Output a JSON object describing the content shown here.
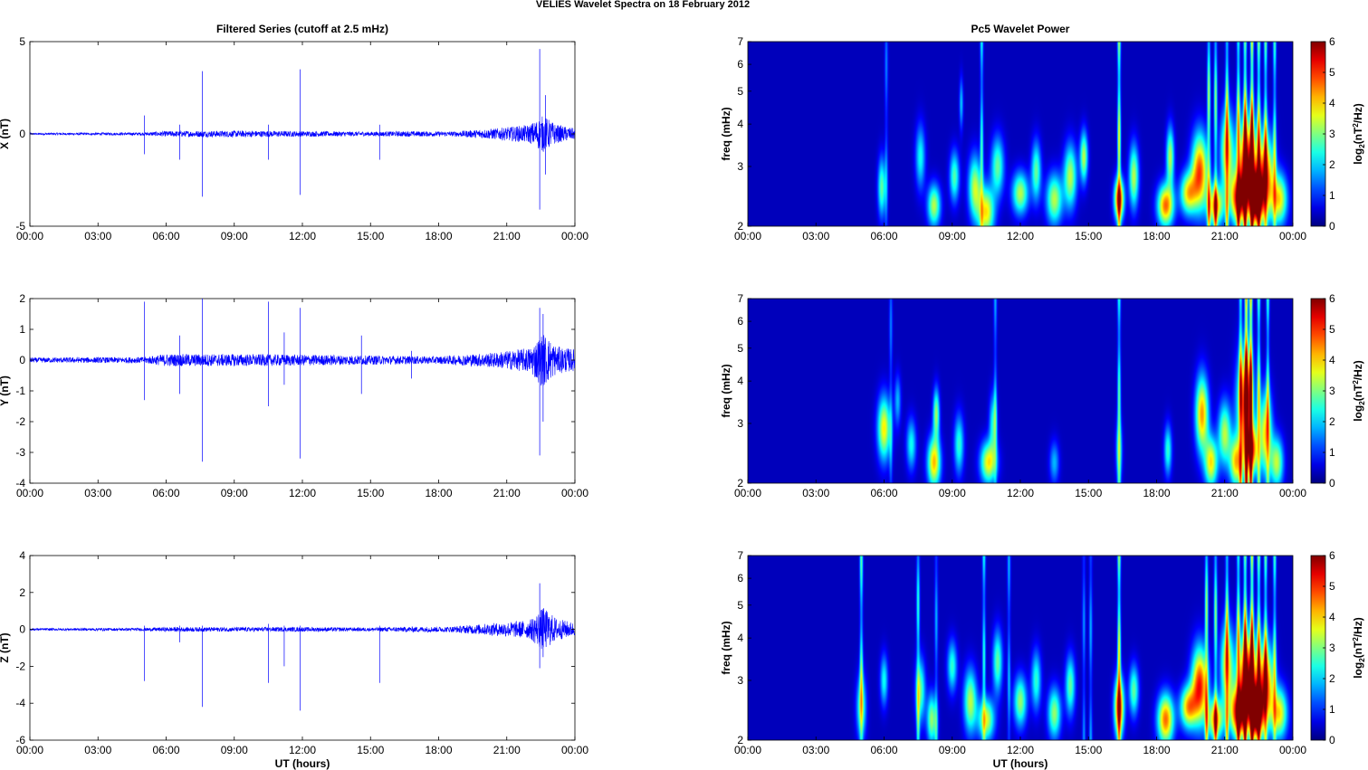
{
  "figure": {
    "suptitle": "VELIES Wavelet Spectra on 18 February  2012",
    "left_title": "Filtered Series (cutoff at 2.5 mHz)",
    "right_title": "Pc5 Wavelet Power"
  },
  "chart_data": [
    {
      "type": "line",
      "title": "Filtered Series (cutoff at 2.5 mHz)",
      "ylabel": "X (nT)",
      "xlabel": "",
      "xlim": [
        0,
        24
      ],
      "ylim": [
        -5,
        5
      ],
      "xticks": [
        "00:00",
        "03:00",
        "06:00",
        "09:00",
        "12:00",
        "15:00",
        "18:00",
        "21:00",
        "00:00"
      ],
      "yticks": [
        -5,
        0,
        5
      ],
      "series": [
        {
          "color": "#0000ff",
          "noise_profile": [
            [
              0,
              0.05
            ],
            [
              5,
              0.08
            ],
            [
              6,
              0.15
            ],
            [
              9,
              0.18
            ],
            [
              12,
              0.15
            ],
            [
              15,
              0.12
            ],
            [
              16.8,
              0.15
            ],
            [
              18.5,
              0.12
            ],
            [
              20.5,
              0.3
            ],
            [
              22,
              0.5
            ],
            [
              22.6,
              1.0
            ],
            [
              23.2,
              0.5
            ],
            [
              24,
              0.3
            ]
          ],
          "spikes": [
            [
              5.05,
              1.0,
              -1.1
            ],
            [
              6.6,
              0.5,
              -1.4
            ],
            [
              7.6,
              3.4,
              -3.4
            ],
            [
              10.5,
              0.5,
              -1.4
            ],
            [
              11.9,
              3.5,
              -3.3
            ],
            [
              15.4,
              0.5,
              -1.4
            ],
            [
              22.45,
              4.6,
              -4.1
            ],
            [
              22.7,
              2.1,
              -2.2
            ]
          ]
        }
      ]
    },
    {
      "type": "line",
      "ylabel": "Y (nT)",
      "xlabel": "",
      "xlim": [
        0,
        24
      ],
      "ylim": [
        -4,
        2
      ],
      "xticks": [
        "00:00",
        "03:00",
        "06:00",
        "09:00",
        "12:00",
        "15:00",
        "18:00",
        "21:00",
        "00:00"
      ],
      "yticks": [
        -4,
        -3,
        -2,
        -1,
        0,
        1,
        2
      ],
      "series": [
        {
          "color": "#0000ff",
          "noise_profile": [
            [
              0,
              0.08
            ],
            [
              5,
              0.1
            ],
            [
              6,
              0.2
            ],
            [
              9,
              0.2
            ],
            [
              12,
              0.18
            ],
            [
              15,
              0.15
            ],
            [
              18,
              0.12
            ],
            [
              20.5,
              0.25
            ],
            [
              22,
              0.4
            ],
            [
              22.6,
              0.9
            ],
            [
              23.2,
              0.45
            ],
            [
              24,
              0.35
            ]
          ],
          "spikes": [
            [
              5.05,
              1.9,
              -1.3
            ],
            [
              6.6,
              0.8,
              -1.1
            ],
            [
              7.6,
              2.0,
              -3.3
            ],
            [
              10.5,
              1.9,
              -1.5
            ],
            [
              11.2,
              0.9,
              -0.8
            ],
            [
              11.9,
              1.7,
              -3.2
            ],
            [
              14.6,
              0.8,
              -1.1
            ],
            [
              16.8,
              0.3,
              -0.6
            ],
            [
              22.45,
              1.7,
              -3.1
            ],
            [
              22.6,
              1.5,
              -2.0
            ]
          ]
        }
      ]
    },
    {
      "type": "line",
      "ylabel": "Z (nT)",
      "xlabel": "UT (hours)",
      "xlim": [
        0,
        24
      ],
      "ylim": [
        -6,
        4
      ],
      "xticks": [
        "00:00",
        "03:00",
        "06:00",
        "09:00",
        "12:00",
        "15:00",
        "18:00",
        "21:00",
        "00:00"
      ],
      "yticks": [
        -6,
        -4,
        -2,
        0,
        2,
        4
      ],
      "series": [
        {
          "color": "#0000ff",
          "noise_profile": [
            [
              0,
              0.06
            ],
            [
              5,
              0.08
            ],
            [
              6,
              0.12
            ],
            [
              9,
              0.12
            ],
            [
              12,
              0.12
            ],
            [
              15,
              0.1
            ],
            [
              17,
              0.15
            ],
            [
              18.5,
              0.15
            ],
            [
              20.5,
              0.35
            ],
            [
              22,
              0.5
            ],
            [
              22.6,
              1.2
            ],
            [
              23.2,
              0.6
            ],
            [
              24,
              0.35
            ]
          ],
          "spikes": [
            [
              5.05,
              0.2,
              -2.8
            ],
            [
              6.6,
              0.2,
              -0.7
            ],
            [
              7.6,
              0.2,
              -4.2
            ],
            [
              10.5,
              0.3,
              -2.9
            ],
            [
              11.2,
              0.2,
              -2.0
            ],
            [
              11.9,
              0.2,
              -4.4
            ],
            [
              15.4,
              0.2,
              -2.9
            ],
            [
              22.45,
              2.5,
              -2.1
            ],
            [
              22.6,
              1.1,
              -1.5
            ]
          ]
        }
      ]
    },
    {
      "type": "heatmap",
      "title": "Pc5 Wavelet Power",
      "ylabel": "freq (mHz)",
      "xlabel": "",
      "xlim": [
        0,
        24
      ],
      "ylim": [
        2,
        7
      ],
      "yscale": "log",
      "xticks": [
        "00:00",
        "03:00",
        "06:00",
        "09:00",
        "12:00",
        "15:00",
        "18:00",
        "21:00",
        "00:00"
      ],
      "yticks": [
        2,
        3,
        4,
        5,
        6,
        7
      ],
      "colorbar": {
        "label": "log2(nT^2/Hz)",
        "ticks": [
          0,
          1,
          2,
          3,
          4,
          5,
          6
        ],
        "range": [
          0,
          6
        ],
        "colormap": "jet"
      },
      "blobs": [
        [
          5.9,
          2.6,
          0.12,
          0.14,
          2.5
        ],
        [
          7.6,
          3.2,
          0.15,
          0.15,
          2.0
        ],
        [
          8.2,
          2.3,
          0.2,
          0.1,
          3.0
        ],
        [
          9.1,
          2.8,
          0.15,
          0.12,
          2.4
        ],
        [
          9.4,
          4.6,
          0.06,
          0.12,
          1.6
        ],
        [
          10.0,
          2.6,
          0.2,
          0.15,
          3.0
        ],
        [
          10.5,
          2.2,
          0.25,
          0.12,
          3.5
        ],
        [
          11.0,
          3.0,
          0.2,
          0.14,
          2.5
        ],
        [
          12.0,
          2.5,
          0.25,
          0.1,
          3.0
        ],
        [
          12.7,
          2.9,
          0.15,
          0.14,
          2.5
        ],
        [
          13.5,
          2.4,
          0.25,
          0.12,
          3.0
        ],
        [
          14.2,
          2.8,
          0.2,
          0.15,
          3.0
        ],
        [
          14.8,
          3.2,
          0.12,
          0.12,
          3.0
        ],
        [
          16.35,
          2.4,
          0.15,
          0.1,
          4.8
        ],
        [
          17.0,
          2.8,
          0.15,
          0.15,
          3.0
        ],
        [
          18.4,
          2.3,
          0.25,
          0.1,
          4.3
        ],
        [
          18.6,
          3.2,
          0.12,
          0.14,
          3.0
        ],
        [
          19.4,
          2.5,
          0.25,
          0.1,
          3.5
        ],
        [
          19.9,
          2.9,
          0.25,
          0.18,
          4.5
        ],
        [
          20.6,
          2.3,
          0.25,
          0.1,
          3.8
        ],
        [
          21.1,
          3.3,
          0.2,
          0.2,
          3.5
        ],
        [
          21.6,
          2.4,
          0.25,
          0.12,
          4.5
        ],
        [
          22.0,
          3.0,
          0.3,
          0.22,
          5.5
        ],
        [
          22.4,
          2.4,
          0.2,
          0.12,
          5.8
        ],
        [
          22.8,
          2.8,
          0.25,
          0.2,
          4.5
        ],
        [
          23.4,
          2.4,
          0.25,
          0.12,
          3.5
        ]
      ],
      "streaks": [
        [
          16.35,
          3.5
        ],
        [
          20.3,
          3.0
        ],
        [
          20.6,
          2.8
        ],
        [
          21.1,
          3.0
        ],
        [
          21.6,
          3.3
        ],
        [
          21.9,
          4.0
        ],
        [
          22.2,
          4.5
        ],
        [
          22.5,
          3.5
        ],
        [
          22.8,
          3.0
        ],
        [
          23.2,
          2.5
        ],
        [
          10.3,
          2.2
        ],
        [
          6.1,
          1.2
        ]
      ]
    },
    {
      "type": "heatmap",
      "ylabel": "freq (mHz)",
      "xlabel": "",
      "xlim": [
        0,
        24
      ],
      "ylim": [
        2,
        7
      ],
      "yscale": "log",
      "xticks": [
        "00:00",
        "03:00",
        "06:00",
        "09:00",
        "12:00",
        "15:00",
        "18:00",
        "21:00",
        "00:00"
      ],
      "yticks": [
        2,
        3,
        4,
        5,
        6,
        7
      ],
      "colorbar": {
        "label": "log2(nT^2/Hz)",
        "ticks": [
          0,
          1,
          2,
          3,
          4,
          5,
          6
        ],
        "range": [
          0,
          6
        ],
        "colormap": "jet"
      },
      "blobs": [
        [
          6.0,
          2.9,
          0.2,
          0.15,
          3.5
        ],
        [
          6.6,
          3.5,
          0.1,
          0.12,
          1.5
        ],
        [
          7.2,
          2.6,
          0.15,
          0.12,
          2.0
        ],
        [
          8.2,
          2.3,
          0.2,
          0.12,
          3.8
        ],
        [
          8.3,
          3.2,
          0.1,
          0.12,
          2.8
        ],
        [
          9.3,
          2.6,
          0.15,
          0.14,
          2.2
        ],
        [
          10.6,
          2.3,
          0.25,
          0.1,
          3.5
        ],
        [
          10.8,
          3.0,
          0.12,
          0.14,
          2.0
        ],
        [
          13.5,
          2.3,
          0.15,
          0.1,
          1.5
        ],
        [
          16.35,
          2.5,
          0.1,
          0.14,
          2.0
        ],
        [
          18.5,
          2.5,
          0.12,
          0.12,
          2.2
        ],
        [
          20.0,
          3.2,
          0.2,
          0.18,
          4.0
        ],
        [
          20.4,
          2.3,
          0.2,
          0.12,
          3.5
        ],
        [
          21.0,
          2.8,
          0.2,
          0.15,
          3.0
        ],
        [
          21.5,
          2.3,
          0.2,
          0.12,
          3.5
        ],
        [
          21.9,
          3.4,
          0.25,
          0.25,
          4.5
        ],
        [
          22.2,
          2.5,
          0.2,
          0.12,
          4.0
        ],
        [
          22.8,
          2.8,
          0.2,
          0.2,
          3.5
        ],
        [
          23.3,
          2.3,
          0.2,
          0.12,
          3.0
        ]
      ],
      "streaks": [
        [
          16.35,
          2.5
        ],
        [
          21.7,
          3.0
        ],
        [
          21.95,
          5.5
        ],
        [
          22.15,
          5.0
        ],
        [
          22.5,
          3.0
        ],
        [
          22.9,
          2.5
        ],
        [
          10.9,
          1.5
        ],
        [
          6.3,
          1.2
        ]
      ]
    },
    {
      "type": "heatmap",
      "ylabel": "freq (mHz)",
      "xlabel": "UT (hours)",
      "xlim": [
        0,
        24
      ],
      "ylim": [
        2,
        7
      ],
      "yscale": "log",
      "xticks": [
        "00:00",
        "03:00",
        "06:00",
        "09:00",
        "12:00",
        "15:00",
        "18:00",
        "21:00",
        "00:00"
      ],
      "yticks": [
        2,
        3,
        4,
        5,
        6,
        7
      ],
      "colorbar": {
        "label": "log2(nT^2/Hz)",
        "ticks": [
          0,
          1,
          2,
          3,
          4,
          5,
          6
        ],
        "range": [
          0,
          6
        ],
        "colormap": "jet"
      },
      "blobs": [
        [
          5.0,
          2.5,
          0.15,
          0.15,
          2.5
        ],
        [
          6.0,
          3.0,
          0.12,
          0.12,
          2.0
        ],
        [
          7.6,
          2.8,
          0.15,
          0.15,
          2.5
        ],
        [
          8.1,
          2.3,
          0.15,
          0.12,
          2.8
        ],
        [
          9.0,
          3.3,
          0.15,
          0.12,
          2.2
        ],
        [
          9.8,
          2.6,
          0.2,
          0.15,
          3.0
        ],
        [
          10.5,
          2.3,
          0.25,
          0.1,
          3.2
        ],
        [
          11.0,
          3.4,
          0.15,
          0.15,
          2.5
        ],
        [
          12.0,
          2.6,
          0.2,
          0.12,
          2.8
        ],
        [
          12.7,
          3.0,
          0.15,
          0.14,
          2.2
        ],
        [
          13.5,
          2.4,
          0.2,
          0.12,
          2.8
        ],
        [
          14.2,
          2.9,
          0.15,
          0.14,
          2.5
        ],
        [
          16.35,
          2.5,
          0.15,
          0.14,
          4.8
        ],
        [
          17.0,
          2.8,
          0.15,
          0.12,
          2.5
        ],
        [
          18.4,
          2.3,
          0.25,
          0.12,
          4.3
        ],
        [
          19.4,
          2.5,
          0.25,
          0.1,
          3.8
        ],
        [
          19.9,
          2.9,
          0.25,
          0.18,
          4.8
        ],
        [
          20.6,
          2.3,
          0.25,
          0.1,
          3.8
        ],
        [
          21.1,
          3.3,
          0.2,
          0.2,
          3.5
        ],
        [
          21.6,
          2.4,
          0.25,
          0.12,
          4.8
        ],
        [
          22.0,
          3.0,
          0.3,
          0.22,
          5.6
        ],
        [
          22.4,
          2.4,
          0.2,
          0.12,
          5.8
        ],
        [
          22.8,
          2.9,
          0.25,
          0.2,
          4.5
        ],
        [
          23.4,
          2.4,
          0.25,
          0.12,
          3.5
        ]
      ],
      "streaks": [
        [
          5.0,
          2.5
        ],
        [
          7.5,
          2.2
        ],
        [
          8.3,
          1.5
        ],
        [
          10.4,
          2.2
        ],
        [
          11.5,
          1.5
        ],
        [
          14.8,
          1.3
        ],
        [
          15.1,
          1.5
        ],
        [
          16.35,
          3.5
        ],
        [
          20.2,
          3.0
        ],
        [
          20.6,
          2.8
        ],
        [
          21.1,
          3.0
        ],
        [
          21.6,
          3.3
        ],
        [
          21.9,
          4.0
        ],
        [
          22.2,
          4.5
        ],
        [
          22.5,
          3.5
        ],
        [
          22.8,
          3.0
        ],
        [
          23.2,
          2.5
        ]
      ]
    }
  ]
}
